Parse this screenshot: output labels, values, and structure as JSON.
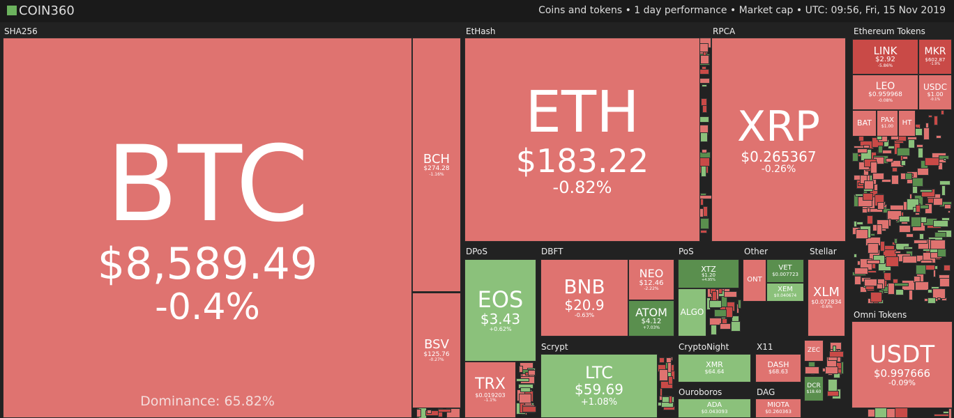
{
  "header": {
    "logo": "COIN360",
    "info": "Coins and tokens • 1 day performance • Market cap • UTC: 09:56, Fri, 15 Nov 2019"
  },
  "groups": [
    {
      "label": "SHA256",
      "coins": [
        {
          "symbol": "BTC",
          "price": "$8,589.49",
          "change": "-0.4%",
          "extra": "Dominance: 65.82%"
        },
        {
          "symbol": "BCH",
          "price": "$274.28",
          "change": "-1.16%"
        },
        {
          "symbol": "BSV",
          "price": "$125.76",
          "change": "-0.27%"
        }
      ]
    },
    {
      "label": "EtHash",
      "coins": [
        {
          "symbol": "ETH",
          "price": "$183.22",
          "change": "-0.82%"
        }
      ]
    },
    {
      "label": "RPCA",
      "coins": [
        {
          "symbol": "XRP",
          "price": "$0.265367",
          "change": "-0.26%"
        }
      ]
    },
    {
      "label": "Ethereum Tokens",
      "coins": [
        {
          "symbol": "LINK",
          "price": "$2.92",
          "change": "-5.86%"
        },
        {
          "symbol": "MKR",
          "price": "$602.87",
          "change": "-1.9%"
        },
        {
          "symbol": "LEO",
          "price": "$0.959968",
          "change": "-0.08%"
        },
        {
          "symbol": "USDC",
          "price": "$1.00",
          "change": "-0.1%"
        },
        {
          "symbol": "BAT"
        },
        {
          "symbol": "PAX",
          "price": "$1.00"
        },
        {
          "symbol": "HT"
        }
      ]
    },
    {
      "label": "Omni Tokens",
      "coins": [
        {
          "symbol": "USDT",
          "price": "$0.997666",
          "change": "-0.09%"
        }
      ]
    },
    {
      "label": "DPoS",
      "coins": [
        {
          "symbol": "EOS",
          "price": "$3.43",
          "change": "+0.62%"
        },
        {
          "symbol": "TRX",
          "price": "$0.019203",
          "change": "-1.1%"
        }
      ]
    },
    {
      "label": "DBFT",
      "coins": [
        {
          "symbol": "BNB",
          "price": "$20.9",
          "change": "-0.63%"
        },
        {
          "symbol": "NEO",
          "price": "$12.46",
          "change": "-2.22%"
        },
        {
          "symbol": "ATOM",
          "price": "$4.12",
          "change": "+7.03%"
        }
      ]
    },
    {
      "label": "PoS",
      "coins": [
        {
          "symbol": "XTZ",
          "price": "$1.20",
          "change": "+4.95%"
        },
        {
          "symbol": "ALGO"
        }
      ]
    },
    {
      "label": "Other",
      "coins": [
        {
          "symbol": "ONT"
        },
        {
          "symbol": "VET",
          "price": "$0.007723"
        },
        {
          "symbol": "XEM",
          "price": "$0.040674"
        }
      ]
    },
    {
      "label": "Stellar",
      "coins": [
        {
          "symbol": "XLM",
          "price": "$0.072834",
          "change": "-0.6%"
        }
      ]
    },
    {
      "label": "Scrypt",
      "coins": [
        {
          "symbol": "LTC",
          "price": "$59.69",
          "change": "+1.08%"
        }
      ]
    },
    {
      "label": "CryptoNight",
      "coins": [
        {
          "symbol": "XMR",
          "price": "$64.64"
        }
      ]
    },
    {
      "label": "X11",
      "coins": [
        {
          "symbol": "DASH",
          "price": "$68.63"
        }
      ]
    },
    {
      "coins": [
        {
          "symbol": "ZEC"
        },
        {
          "symbol": "DCR",
          "price": "$18.60"
        }
      ]
    },
    {
      "label": "Ouroboros",
      "coins": [
        {
          "symbol": "ADA",
          "price": "$0.043093"
        }
      ]
    },
    {
      "label": "DAG",
      "coins": [
        {
          "symbol": "MIOTA",
          "price": "$0.260363"
        }
      ]
    }
  ]
}
